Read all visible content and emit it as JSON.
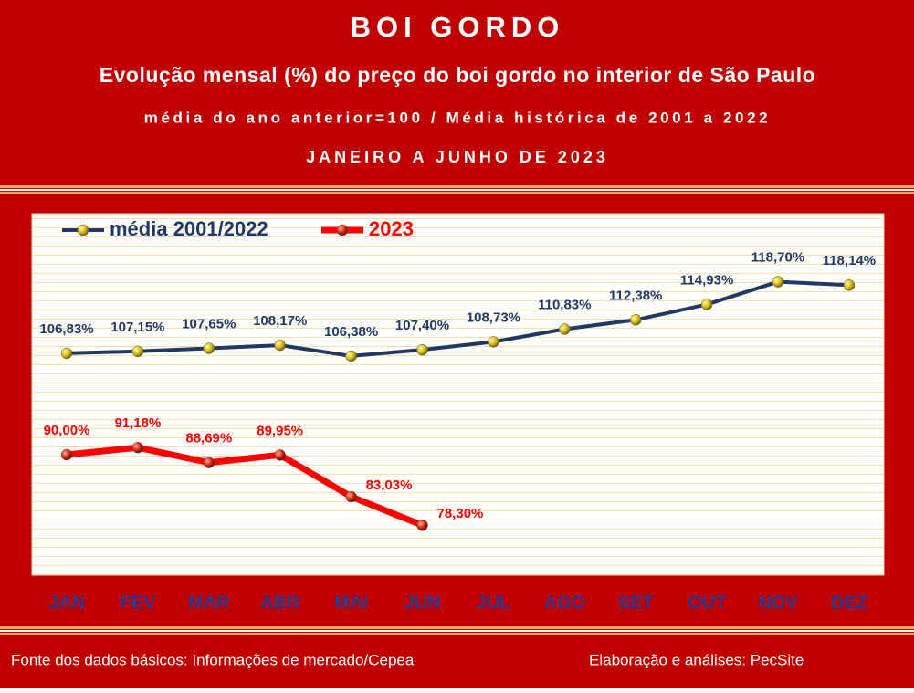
{
  "chart_data": {
    "type": "line",
    "title": "BOI GORDO",
    "subtitle": "Evolução mensal (%) do preço do boi gordo no interior de São Paulo",
    "note": "média do ano anterior=100 / Média histórica de 2001 a 2022",
    "period": "JANEIRO A JUNHO DE 2023",
    "source": "Fonte dos dados básicos: Informações de mercado/Cepea",
    "credit": "Elaboração e análises: PecSite",
    "categories": [
      "JAN",
      "FEV",
      "MAR",
      "ABR",
      "MAI",
      "JUN",
      "JUL",
      "AGO",
      "SET",
      "OUT",
      "NOV",
      "DEZ"
    ],
    "ylim": [
      70,
      130
    ],
    "series": [
      {
        "name": "média 2001/2022",
        "color": "#1f3864",
        "values": [
          106.83,
          107.15,
          107.65,
          108.17,
          106.38,
          107.4,
          108.73,
          110.83,
          112.38,
          114.93,
          118.7,
          118.14
        ],
        "value_labels": [
          "106,83%",
          "107,15%",
          "107,65%",
          "108,17%",
          "106,38%",
          "107,40%",
          "108,73%",
          "110,83%",
          "112,38%",
          "114,93%",
          "118,70%",
          "118,14%"
        ]
      },
      {
        "name": "2023",
        "color": "#ff0000",
        "values": [
          90.0,
          91.18,
          88.69,
          89.95,
          83.03,
          78.3,
          null,
          null,
          null,
          null,
          null,
          null
        ],
        "value_labels": [
          "90,00%",
          "91,18%",
          "88,69%",
          "89,95%",
          "83,03%",
          "78,30%",
          null,
          null,
          null,
          null,
          null,
          null
        ]
      }
    ]
  }
}
